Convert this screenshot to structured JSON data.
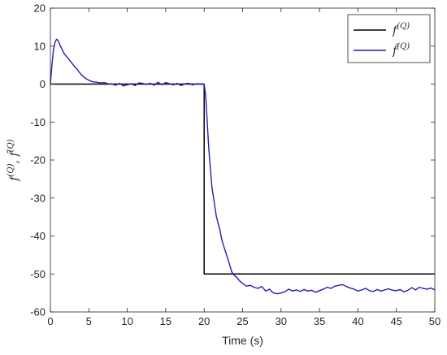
{
  "chart_data": {
    "type": "line",
    "xlabel": "Time (s)",
    "ylabel_parts": [
      "f",
      "(Q)",
      ", ",
      "f̂",
      "(Q)"
    ],
    "xlim": [
      0,
      50
    ],
    "ylim": [
      -60,
      20
    ],
    "xticks": [
      0,
      5,
      10,
      15,
      20,
      25,
      30,
      35,
      40,
      45,
      50
    ],
    "yticks": [
      20,
      10,
      0,
      -10,
      -20,
      -30,
      -40,
      -50,
      -60
    ],
    "grid": false,
    "legend_position": "top-right",
    "series": [
      {
        "name_base": "f",
        "name_sup": "(Q)",
        "color": "#000000",
        "x": [
          0,
          20,
          20,
          50
        ],
        "y": [
          0,
          0,
          -50,
          -50
        ]
      },
      {
        "name_base": "f̂",
        "name_sup": "(Q)",
        "color": "#1f1fb4",
        "x": [
          0,
          0.2,
          0.4,
          0.6,
          0.8,
          1.0,
          1.2,
          1.5,
          1.8,
          2.2,
          2.6,
          3.0,
          3.5,
          4.0,
          4.5,
          5.0,
          5.5,
          6.0,
          6.5,
          7.0,
          7.5,
          8.0,
          8.5,
          9.0,
          9.5,
          10.0,
          10.5,
          11.0,
          11.5,
          12.0,
          12.5,
          13.0,
          13.5,
          14.0,
          14.5,
          15.0,
          15.5,
          16.0,
          16.5,
          17.0,
          17.5,
          18.0,
          18.5,
          19.0,
          19.5,
          20.0,
          20.2,
          20.4,
          20.6,
          20.8,
          21.0,
          21.3,
          21.6,
          22.0,
          22.3,
          22.6,
          23.0,
          23.3,
          23.6,
          24.0,
          24.3,
          24.6,
          25.0,
          25.5,
          26.0,
          26.5,
          27.0,
          27.5,
          28.0,
          28.5,
          29.0,
          29.5,
          30.0,
          30.5,
          31.0,
          31.5,
          32.0,
          32.5,
          33.0,
          33.5,
          34.0,
          34.5,
          35.0,
          35.5,
          36.0,
          36.5,
          37.0,
          37.5,
          38.0,
          38.5,
          39.0,
          39.5,
          40.0,
          40.5,
          41.0,
          41.5,
          42.0,
          42.5,
          43.0,
          43.5,
          44.0,
          44.5,
          45.0,
          45.5,
          46.0,
          46.5,
          47.0,
          47.5,
          48.0,
          48.5,
          49.0,
          49.5,
          50.0
        ],
        "y": [
          0,
          5,
          9,
          11,
          11.8,
          11.5,
          10.5,
          9.2,
          8,
          7,
          6,
          5,
          3.8,
          2.5,
          1.6,
          1,
          0.6,
          0.5,
          0.3,
          0.4,
          0.1,
          0,
          -0.3,
          0.2,
          -0.5,
          -0.2,
          0.1,
          -0.4,
          0.3,
          0.2,
          -0.1,
          0.2,
          -0.3,
          0.5,
          -0.2,
          0.4,
          0.1,
          -0.2,
          0.2,
          -0.4,
          0.1,
          0.2,
          -0.2,
          0.1,
          0,
          0,
          -3,
          -10,
          -17,
          -22,
          -27,
          -31,
          -35,
          -38,
          -41,
          -43,
          -45.5,
          -47.5,
          -49.5,
          -50.5,
          -51,
          -51.8,
          -52.5,
          -53.2,
          -53,
          -53.5,
          -53.8,
          -53.3,
          -54.5,
          -54,
          -55,
          -55.2,
          -55,
          -54.7,
          -54,
          -54.5,
          -54.2,
          -54.6,
          -54.1,
          -54.5,
          -54.3,
          -54.8,
          -54.4,
          -54,
          -53.5,
          -53.8,
          -53.2,
          -53,
          -52.8,
          -53.3,
          -53.7,
          -54,
          -54.5,
          -54.2,
          -53.8,
          -54.4,
          -54.6,
          -54.1,
          -54.5,
          -54.2,
          -53.9,
          -54.3,
          -54.4,
          -54.1,
          -54.7,
          -54.3,
          -53.6,
          -54.2,
          -53.5,
          -53.8,
          -54,
          -53.7,
          -54.2
        ]
      }
    ]
  }
}
